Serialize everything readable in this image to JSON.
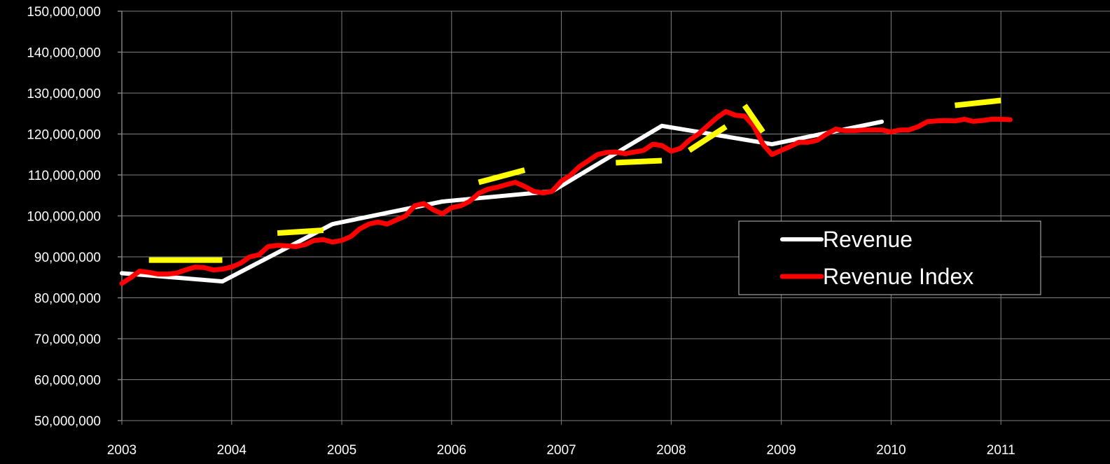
{
  "chart_data": {
    "type": "line",
    "title": "",
    "xlabel": "",
    "ylabel": "",
    "x_axis": {
      "type": "date",
      "range": [
        "2003-01-01",
        "2011-11-01"
      ],
      "tick_labels": [
        "2003",
        "2004",
        "2005",
        "2006",
        "2007",
        "2008",
        "2009",
        "2010",
        "2011"
      ],
      "tick_values": [
        "2003-01-01",
        "2004-01-01",
        "2005-01-01",
        "2006-01-01",
        "2007-01-01",
        "2008-01-01",
        "2009-01-01",
        "2010-01-01",
        "2011-01-01"
      ]
    },
    "y_axis": {
      "range": [
        50000000,
        150000000
      ],
      "tick_values": [
        50000000,
        60000000,
        70000000,
        80000000,
        90000000,
        100000000,
        110000000,
        120000000,
        130000000,
        140000000,
        150000000
      ],
      "tick_labels": [
        "50,000,000",
        "60,000,000",
        "70,000,000",
        "80,000,000",
        "90,000,000",
        "100,000,000",
        "110,000,000",
        "120,000,000",
        "130,000,000",
        "140,000,000",
        "150,000,000"
      ]
    },
    "grid": true,
    "legend": {
      "placement": "right",
      "entries": [
        "Revenue",
        "Revenue Index"
      ]
    },
    "colors": {
      "background": "#000000",
      "grid": "#808080",
      "revenue": "#ffffff",
      "revenue_index": "#ff0000",
      "trend_marks": "#ffff00",
      "text": "#ffffff"
    },
    "series": [
      {
        "name": "Revenue",
        "color": "#ffffff",
        "points": [
          [
            "2003-01-01",
            86000000
          ],
          [
            "2003-12-01",
            84000000
          ],
          [
            "2004-12-01",
            98000000
          ],
          [
            "2005-12-01",
            103500000
          ],
          [
            "2006-12-01",
            106000000
          ],
          [
            "2007-12-01",
            122000000
          ],
          [
            "2008-12-01",
            117500000
          ],
          [
            "2009-12-01",
            123000000
          ]
        ]
      },
      {
        "name": "Revenue Index",
        "color": "#ff0000",
        "points": [
          [
            "2003-01-01",
            83500000
          ],
          [
            "2003-02-01",
            85000000
          ],
          [
            "2003-03-01",
            86500000
          ],
          [
            "2003-04-01",
            86200000
          ],
          [
            "2003-05-01",
            85800000
          ],
          [
            "2003-06-01",
            85800000
          ],
          [
            "2003-07-01",
            86000000
          ],
          [
            "2003-08-01",
            86800000
          ],
          [
            "2003-09-01",
            87500000
          ],
          [
            "2003-10-01",
            87400000
          ],
          [
            "2003-11-01",
            86800000
          ],
          [
            "2003-12-01",
            87000000
          ],
          [
            "2004-01-01",
            87500000
          ],
          [
            "2004-02-01",
            88500000
          ],
          [
            "2004-03-01",
            90000000
          ],
          [
            "2004-04-01",
            90500000
          ],
          [
            "2004-05-01",
            92500000
          ],
          [
            "2004-06-01",
            92800000
          ],
          [
            "2004-07-01",
            92700000
          ],
          [
            "2004-08-01",
            92500000
          ],
          [
            "2004-09-01",
            93000000
          ],
          [
            "2004-10-01",
            94000000
          ],
          [
            "2004-11-01",
            94200000
          ],
          [
            "2004-12-01",
            93600000
          ],
          [
            "2005-01-01",
            94000000
          ],
          [
            "2005-02-01",
            95000000
          ],
          [
            "2005-03-01",
            96800000
          ],
          [
            "2005-04-01",
            98000000
          ],
          [
            "2005-05-01",
            98500000
          ],
          [
            "2005-06-01",
            98000000
          ],
          [
            "2005-07-01",
            99000000
          ],
          [
            "2005-08-01",
            100000000
          ],
          [
            "2005-09-01",
            102500000
          ],
          [
            "2005-10-01",
            103000000
          ],
          [
            "2005-11-01",
            101500000
          ],
          [
            "2005-12-01",
            100500000
          ],
          [
            "2006-01-01",
            102000000
          ],
          [
            "2006-02-01",
            102500000
          ],
          [
            "2006-03-01",
            103500000
          ],
          [
            "2006-04-01",
            105500000
          ],
          [
            "2006-05-01",
            106500000
          ],
          [
            "2006-06-01",
            107000000
          ],
          [
            "2006-07-01",
            107600000
          ],
          [
            "2006-08-01",
            108200000
          ],
          [
            "2006-09-01",
            107200000
          ],
          [
            "2006-10-01",
            106000000
          ],
          [
            "2006-11-01",
            105600000
          ],
          [
            "2006-12-01",
            106000000
          ],
          [
            "2007-01-01",
            108500000
          ],
          [
            "2007-02-01",
            110000000
          ],
          [
            "2007-03-01",
            112000000
          ],
          [
            "2007-04-01",
            113500000
          ],
          [
            "2007-05-01",
            115000000
          ],
          [
            "2007-06-01",
            115500000
          ],
          [
            "2007-07-01",
            115600000
          ],
          [
            "2007-08-01",
            115200000
          ],
          [
            "2007-09-01",
            115600000
          ],
          [
            "2007-10-01",
            116000000
          ],
          [
            "2007-11-01",
            117500000
          ],
          [
            "2007-12-01",
            117200000
          ],
          [
            "2008-01-01",
            115800000
          ],
          [
            "2008-02-01",
            116500000
          ],
          [
            "2008-03-01",
            118500000
          ],
          [
            "2008-04-01",
            120000000
          ],
          [
            "2008-05-01",
            122000000
          ],
          [
            "2008-06-01",
            124000000
          ],
          [
            "2008-07-01",
            125500000
          ],
          [
            "2008-08-01",
            124600000
          ],
          [
            "2008-09-01",
            124400000
          ],
          [
            "2008-10-01",
            122000000
          ],
          [
            "2008-11-01",
            117500000
          ],
          [
            "2008-12-01",
            115000000
          ],
          [
            "2009-01-01",
            116000000
          ],
          [
            "2009-02-01",
            117000000
          ],
          [
            "2009-03-01",
            118000000
          ],
          [
            "2009-04-01",
            118000000
          ],
          [
            "2009-05-01",
            118500000
          ],
          [
            "2009-06-01",
            120000000
          ],
          [
            "2009-07-01",
            121200000
          ],
          [
            "2009-08-01",
            120800000
          ],
          [
            "2009-09-01",
            120800000
          ],
          [
            "2009-10-01",
            121000000
          ],
          [
            "2009-11-01",
            121000000
          ],
          [
            "2009-12-01",
            121000000
          ],
          [
            "2010-01-01",
            120500000
          ],
          [
            "2010-02-01",
            121000000
          ],
          [
            "2010-03-01",
            121000000
          ],
          [
            "2010-04-01",
            121800000
          ],
          [
            "2010-05-01",
            123000000
          ],
          [
            "2010-06-01",
            123200000
          ],
          [
            "2010-07-01",
            123300000
          ],
          [
            "2010-08-01",
            123200000
          ],
          [
            "2010-09-01",
            123600000
          ],
          [
            "2010-10-01",
            123100000
          ],
          [
            "2010-11-01",
            123300000
          ],
          [
            "2010-12-01",
            123600000
          ],
          [
            "2011-01-01",
            123600000
          ],
          [
            "2011-02-01",
            123500000
          ]
        ]
      }
    ],
    "annotations": [
      {
        "type": "trend-segment",
        "color": "#ffff00",
        "points": [
          [
            "2003-04-01",
            89200000
          ],
          [
            "2003-12-01",
            89200000
          ]
        ]
      },
      {
        "type": "trend-segment",
        "color": "#ffff00",
        "points": [
          [
            "2004-06-01",
            95800000
          ],
          [
            "2004-11-01",
            96500000
          ]
        ]
      },
      {
        "type": "trend-segment",
        "color": "#ffff00",
        "points": [
          [
            "2006-04-01",
            108200000
          ],
          [
            "2006-09-01",
            111200000
          ]
        ]
      },
      {
        "type": "trend-segment",
        "color": "#ffff00",
        "points": [
          [
            "2007-07-01",
            113000000
          ],
          [
            "2007-12-01",
            113500000
          ]
        ]
      },
      {
        "type": "trend-segment",
        "color": "#ffff00",
        "points": [
          [
            "2008-03-01",
            116000000
          ],
          [
            "2008-07-01",
            121800000
          ]
        ]
      },
      {
        "type": "trend-segment",
        "color": "#ffff00",
        "points": [
          [
            "2008-09-01",
            127000000
          ],
          [
            "2008-11-01",
            120500000
          ]
        ]
      },
      {
        "type": "trend-segment",
        "color": "#ffff00",
        "points": [
          [
            "2010-08-01",
            127000000
          ],
          [
            "2011-01-01",
            128200000
          ]
        ]
      }
    ]
  }
}
